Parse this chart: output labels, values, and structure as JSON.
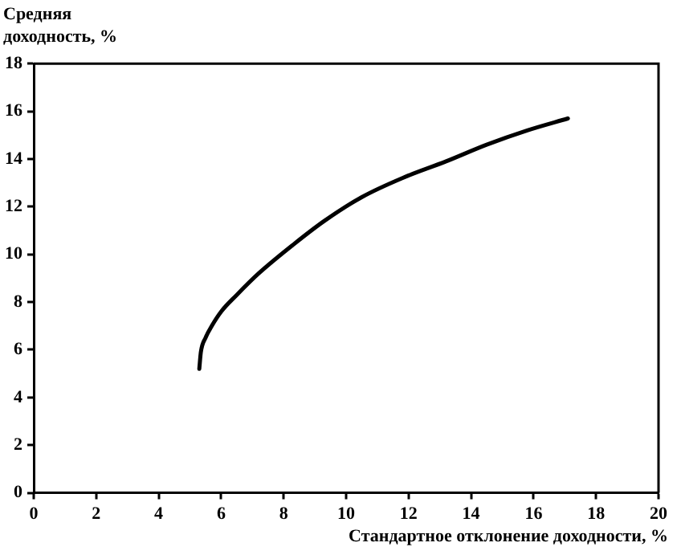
{
  "chart_data": {
    "type": "line",
    "ylabel": "Средняя доходность, %",
    "xlabel": "Стандартное отклонение доходности, %",
    "series": [
      {
        "color": "#000000",
        "x": [
          5.3,
          5.35,
          5.5,
          5.7,
          6.0,
          6.5,
          7.2,
          8.3,
          9.3,
          10.5,
          11.8,
          13.2,
          14.5,
          15.8,
          17.1
        ],
        "values": [
          5.2,
          5.9,
          6.5,
          7.0,
          7.6,
          8.3,
          9.2,
          10.4,
          11.4,
          12.4,
          13.2,
          13.9,
          14.6,
          15.2,
          15.7
        ]
      }
    ],
    "xlim": [
      0,
      20
    ],
    "xticks": [
      0,
      2,
      4,
      6,
      8,
      10,
      12,
      14,
      16,
      18,
      20
    ],
    "ylim": [
      0,
      18
    ],
    "yticks": [
      0,
      2,
      4,
      6,
      8,
      10,
      12,
      14,
      16,
      18
    ],
    "grid": false,
    "legend": false,
    "marker": "none",
    "line_style": "solid"
  }
}
